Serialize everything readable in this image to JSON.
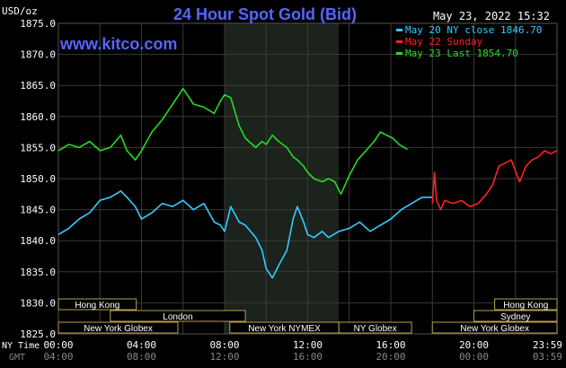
{
  "header": {
    "unit_label": "USD/oz",
    "title": "24 Hour Spot Gold (Bid)",
    "timestamp": "May 23, 2022 15:32",
    "brand": "www.kitco.com",
    "title_color": "#5566ff",
    "brand_color": "#5566ff"
  },
  "legend": [
    {
      "text": "May 20 NY close 1846.70",
      "color": "#33ccff"
    },
    {
      "text": "May 22 Sunday",
      "color": "#ff2222"
    },
    {
      "text": "May 23 Last 1854.70",
      "color": "#22dd22"
    }
  ],
  "bottom_labels": {
    "ny_time": "NY Time",
    "gmt": "GMT"
  },
  "sessions": [
    {
      "label": "Hong Kong",
      "start": 0.0,
      "end": 3.75
    },
    {
      "label": "London",
      "start": 2.5,
      "end": 9.0
    },
    {
      "label": "New York Globex",
      "start": 0.0,
      "end": 5.75
    },
    {
      "label": "New York NYMEX",
      "start": 8.25,
      "end": 13.5
    },
    {
      "label": "NY Globex",
      "start": 13.5,
      "end": 17.0
    },
    {
      "label": "Hong Kong",
      "start": 21.0,
      "end": 24.0
    },
    {
      "label": "Sydney",
      "start": 20.0,
      "end": 24.0
    },
    {
      "label": "New York Globex",
      "start": 18.0,
      "end": 24.0
    }
  ],
  "chart_data": {
    "type": "line",
    "title": "24 Hour Spot Gold (Bid)",
    "ylabel": "USD/oz",
    "ylim": [
      1825.0,
      1875.0
    ],
    "xlim": [
      0,
      24
    ],
    "y_ticks": [
      "1825.0",
      "1830.0",
      "1835.0",
      "1840.0",
      "1845.0",
      "1850.0",
      "1855.0",
      "1860.0",
      "1865.0",
      "1870.0",
      "1875.0"
    ],
    "x_ticks_ny": [
      "00:00",
      "04:00",
      "08:00",
      "12:00",
      "16:00",
      "20:00",
      "23:59"
    ],
    "x_ticks_gmt": [
      "04:00",
      "08:00",
      "12:00",
      "16:00",
      "20:00",
      "00:00",
      "03:59"
    ],
    "nymex_shade": [
      8.0,
      13.5
    ],
    "grid": true,
    "series": [
      {
        "name": "May 20 NY close 1846.70",
        "color": "#33ccff",
        "x": [
          0,
          0.5,
          1.0,
          1.5,
          2.0,
          2.5,
          3.0,
          3.3,
          3.7,
          4.0,
          4.5,
          5.0,
          5.5,
          6.0,
          6.5,
          7.0,
          7.5,
          7.8,
          8.0,
          8.3,
          8.7,
          9.0,
          9.5,
          9.8,
          10.0,
          10.3,
          10.6,
          11.0,
          11.3,
          11.5,
          11.8,
          12.0,
          12.3,
          12.7,
          13.0,
          13.5,
          14.0,
          14.5,
          15.0,
          15.5,
          16.0,
          16.5,
          17.0,
          17.5,
          18.0
        ],
        "values": [
          1841.0,
          1842.0,
          1843.5,
          1844.5,
          1846.5,
          1847.0,
          1848.0,
          1847.0,
          1845.5,
          1843.5,
          1844.5,
          1846.0,
          1845.5,
          1846.5,
          1845.0,
          1846.0,
          1843.0,
          1842.5,
          1841.5,
          1845.5,
          1843.0,
          1842.5,
          1840.5,
          1838.5,
          1835.5,
          1834.0,
          1836.0,
          1838.5,
          1843.5,
          1845.5,
          1843.0,
          1841.0,
          1840.5,
          1841.5,
          1840.5,
          1841.5,
          1842.0,
          1843.0,
          1841.5,
          1842.5,
          1843.5,
          1845.0,
          1846.0,
          1847.0,
          1847.0
        ]
      },
      {
        "name": "May 22 Sunday",
        "color": "#ff2222",
        "x": [
          18.0,
          18.1,
          18.2,
          18.4,
          18.6,
          19.0,
          19.4,
          19.8,
          20.2,
          20.6,
          20.9,
          21.2,
          21.5,
          21.8,
          22.2,
          22.5,
          22.8,
          23.1,
          23.4,
          23.7,
          23.99
        ],
        "values": [
          1846.0,
          1851.0,
          1846.5,
          1845.0,
          1846.5,
          1846.0,
          1846.5,
          1845.5,
          1846.0,
          1847.5,
          1849.0,
          1852.0,
          1852.5,
          1853.0,
          1849.5,
          1852.0,
          1853.0,
          1853.5,
          1854.5,
          1854.0,
          1854.5
        ]
      },
      {
        "name": "May 23 Last 1854.70",
        "color": "#22dd22",
        "x": [
          0,
          0.5,
          1.0,
          1.5,
          2.0,
          2.5,
          3.0,
          3.3,
          3.7,
          4.0,
          4.5,
          5.0,
          5.5,
          6.0,
          6.5,
          7.0,
          7.5,
          7.8,
          8.0,
          8.3,
          8.7,
          9.0,
          9.5,
          9.8,
          10.0,
          10.3,
          10.6,
          11.0,
          11.3,
          11.5,
          11.8,
          12.0,
          12.3,
          12.7,
          13.0,
          13.3,
          13.6,
          14.0,
          14.4,
          14.8,
          15.2,
          15.5,
          15.8,
          16.1,
          16.4,
          16.8
        ],
        "values": [
          1854.5,
          1855.5,
          1855.0,
          1856.0,
          1854.5,
          1855.0,
          1857.0,
          1854.5,
          1853.0,
          1854.5,
          1857.5,
          1859.5,
          1862.0,
          1864.5,
          1862.0,
          1861.5,
          1860.5,
          1862.5,
          1863.5,
          1863.0,
          1858.5,
          1856.5,
          1855.0,
          1856.0,
          1855.5,
          1857.0,
          1856.0,
          1855.0,
          1853.5,
          1853.0,
          1852.0,
          1851.0,
          1850.0,
          1849.5,
          1850.0,
          1849.5,
          1847.5,
          1850.5,
          1853.0,
          1854.5,
          1856.0,
          1857.5,
          1857.0,
          1856.5,
          1855.5,
          1854.7
        ]
      }
    ]
  }
}
